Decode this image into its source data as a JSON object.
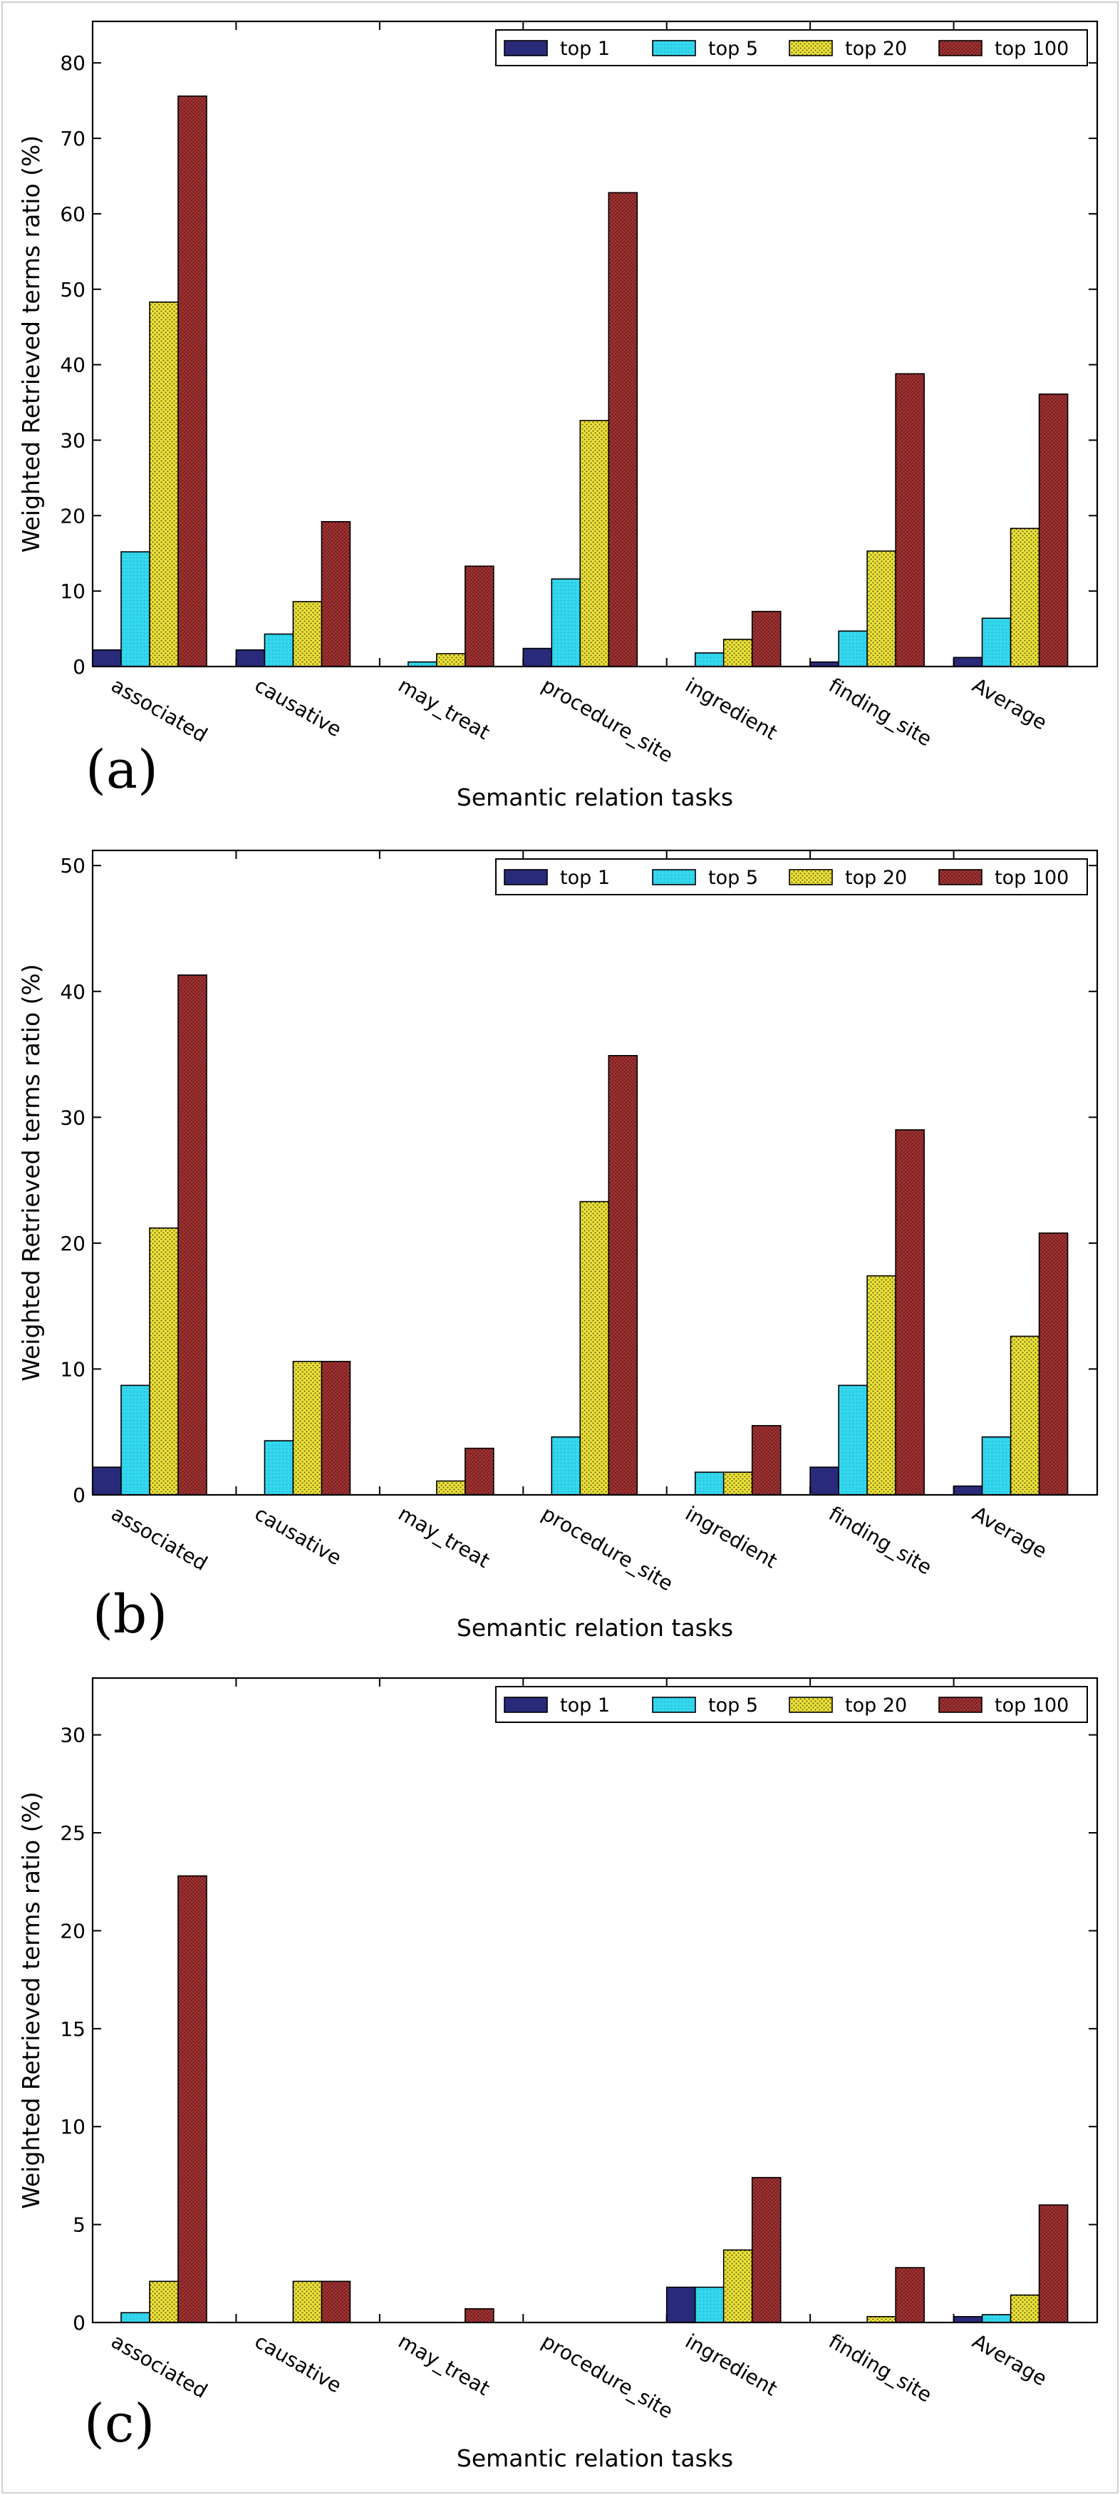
{
  "chart_data": [
    {
      "type": "bar",
      "panel_label": "(a)",
      "categories": [
        "associated",
        "causative",
        "may_treat",
        "procedure_site",
        "ingredient",
        "finding_site",
        "Average"
      ],
      "series": [
        {
          "name": "top 1",
          "values": [
            2.2,
            2.2,
            0,
            2.4,
            0,
            0.6,
            1.2
          ]
        },
        {
          "name": "top 5",
          "values": [
            15.2,
            4.3,
            0.6,
            11.6,
            1.8,
            4.7,
            6.4
          ]
        },
        {
          "name": "top 20",
          "values": [
            48.3,
            8.6,
            1.7,
            32.6,
            3.6,
            15.3,
            18.3
          ]
        },
        {
          "name": "top 100",
          "values": [
            75.6,
            19.2,
            13.3,
            62.8,
            7.3,
            38.8,
            36.1
          ]
        }
      ],
      "xlabel": "Semantic relation tasks",
      "ylabel": "Weighted Retrieved terms ratio (%)",
      "ylim": [
        0,
        85.5
      ],
      "yticks": [
        0,
        10,
        20,
        30,
        40,
        50,
        60,
        70,
        80
      ],
      "legend": "top-right",
      "grid": false
    },
    {
      "type": "bar",
      "panel_label": "(b)",
      "categories": [
        "associated",
        "causative",
        "may_treat",
        "procedure_site",
        "ingredient",
        "finding_site",
        "Average"
      ],
      "series": [
        {
          "name": "top 1",
          "values": [
            2.2,
            0,
            0,
            0,
            0,
            2.2,
            0.7
          ]
        },
        {
          "name": "top 5",
          "values": [
            8.7,
            4.3,
            0,
            4.6,
            1.8,
            8.7,
            4.6
          ]
        },
        {
          "name": "top 20",
          "values": [
            21.2,
            10.6,
            1.1,
            23.3,
            1.8,
            17.4,
            12.6
          ]
        },
        {
          "name": "top 100",
          "values": [
            41.3,
            10.6,
            3.7,
            34.9,
            5.5,
            29.0,
            20.8
          ]
        }
      ],
      "xlabel": "Semantic relation tasks",
      "ylabel": "Weighted Retrieved terms ratio (%)",
      "ylim": [
        0,
        51.2
      ],
      "yticks": [
        0,
        10,
        20,
        30,
        40,
        50
      ],
      "legend": "top-right",
      "grid": false
    },
    {
      "type": "bar",
      "panel_label": "(c)",
      "categories": [
        "associated",
        "causative",
        "may_treat",
        "procedure_site",
        "ingredient",
        "finding_site",
        "Average"
      ],
      "series": [
        {
          "name": "top 1",
          "values": [
            0,
            0,
            0,
            0,
            1.8,
            0,
            0.3
          ]
        },
        {
          "name": "top 5",
          "values": [
            0.5,
            0,
            0,
            0,
            1.8,
            0,
            0.4
          ]
        },
        {
          "name": "top 20",
          "values": [
            2.1,
            2.1,
            0,
            0,
            3.7,
            0.3,
            1.4
          ]
        },
        {
          "name": "top 100",
          "values": [
            22.8,
            2.1,
            0.7,
            0,
            7.4,
            2.8,
            6.0
          ]
        }
      ],
      "xlabel": "Semantic relation tasks",
      "ylabel": "Weighted Retrieved terms ratio (%)",
      "ylim": [
        0,
        32.9
      ],
      "yticks": [
        0,
        5,
        10,
        15,
        20,
        25,
        30
      ],
      "legend": "top-right",
      "grid": false
    }
  ],
  "series_colors": [
    "#2a2a7a",
    "#33d7ee",
    "#ebe13a",
    "#9b2d2d"
  ]
}
